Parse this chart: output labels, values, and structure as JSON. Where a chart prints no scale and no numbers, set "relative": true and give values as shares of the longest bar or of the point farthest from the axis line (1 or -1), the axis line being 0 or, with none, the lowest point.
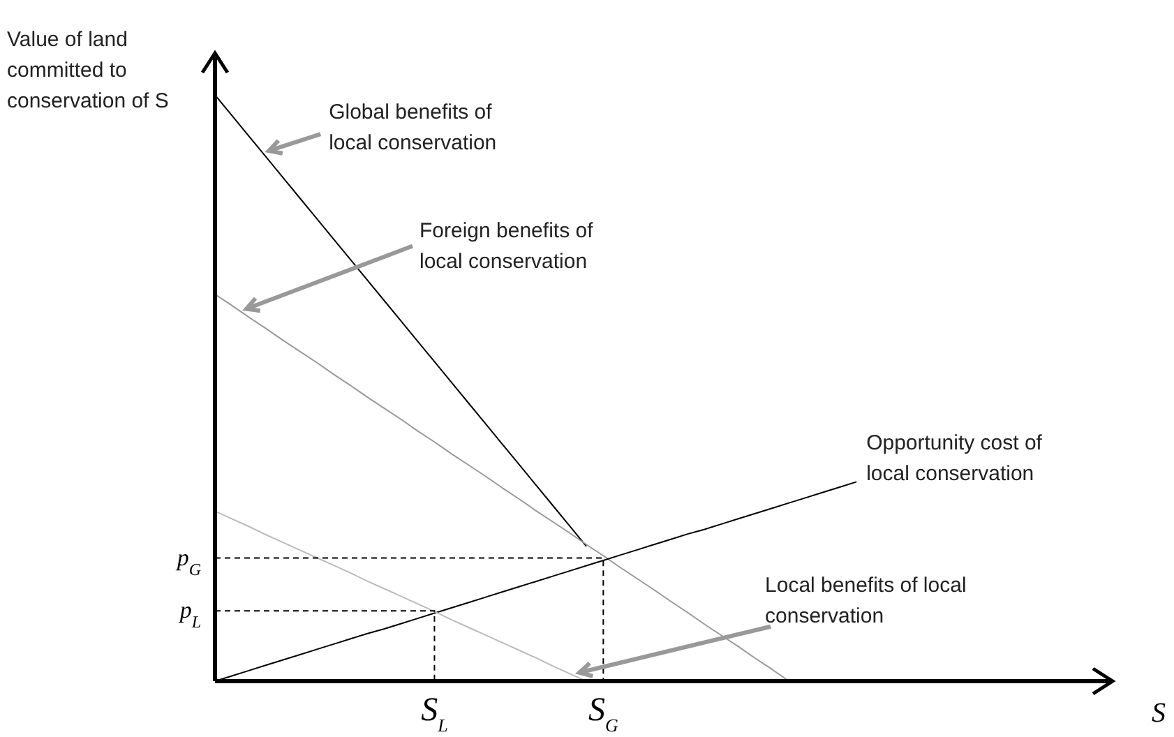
{
  "chart_data": {
    "type": "line",
    "relative": true,
    "ylabel": "Value of land committed to conservation of S",
    "xlabel": "S",
    "categories": [
      null,
      null,
      null,
      null,
      null,
      null,
      null,
      null,
      null,
      null,
      null,
      null,
      null,
      "S$_{L}$",
      null,
      null,
      null,
      null,
      null,
      null,
      null,
      null,
      null,
      "S$_{G}$",
      null,
      null,
      null,
      null,
      null,
      null,
      null,
      null,
      null,
      null,
      null,
      null,
      null,
      null,
      null,
      null,
      null,
      null,
      null,
      null,
      null,
      null,
      null,
      null,
      null,
      null,
      null,
      null,
      null,
      null
    ],
    "grid": false,
    "legend": false,
    "marker": "none",
    "ref_lines": [
      {
        "axis": "y",
        "value": 0.21,
        "label": "p$_{G}$",
        "line_style": "dashed",
        "color": "#000000"
      },
      {
        "axis": "y",
        "value": 0.12,
        "label": "p$_{L}$",
        "line_style": "dashed",
        "color": "#000000"
      }
    ],
    "series": [
      {
        "name": "Global benefits of local conservation",
        "color": "#000000",
        "values": [
          1,
          0.965,
          0.93,
          0.895,
          0.86,
          0.825,
          0.79,
          0.755,
          0.72,
          0.685,
          0.65,
          0.615,
          0.58,
          0.545,
          0.51,
          0.475,
          0.44,
          0.405,
          0.37,
          0.335,
          0.3,
          0.265,
          0.23,
          null,
          null,
          null,
          null,
          null,
          null,
          null,
          null,
          null,
          null,
          null,
          null,
          null,
          null,
          null,
          null,
          null,
          null,
          null,
          null,
          null,
          null,
          null,
          null,
          null,
          null,
          null,
          null,
          null,
          null,
          null
        ]
      },
      {
        "name": "Foreign benefits of local conservation",
        "color": "#999999",
        "values": [
          0.66,
          0.641,
          0.621,
          0.602,
          0.582,
          0.563,
          0.544,
          0.524,
          0.505,
          0.485,
          0.466,
          0.447,
          0.427,
          0.408,
          0.388,
          0.369,
          0.35,
          0.33,
          0.311,
          0.291,
          0.272,
          0.253,
          0.233,
          0.214,
          0.194,
          0.175,
          0.156,
          0.136,
          0.117,
          0.097,
          0.078,
          0.059,
          0.039,
          0.02,
          0,
          null,
          null,
          null,
          null,
          null,
          null,
          null,
          null,
          null,
          null,
          null,
          null,
          null,
          null,
          null,
          null,
          null,
          null,
          null
        ]
      },
      {
        "name": "Opportunity cost of local conservation",
        "color": "#000000",
        "values": [
          0,
          0.009,
          0.018,
          0.027,
          0.036,
          0.045,
          0.054,
          0.063,
          0.072,
          0.081,
          0.089,
          0.098,
          0.107,
          0.116,
          0.125,
          0.134,
          0.143,
          0.152,
          0.161,
          0.17,
          0.179,
          0.188,
          0.197,
          0.206,
          0.215,
          0.224,
          0.233,
          0.242,
          0.251,
          0.259,
          0.268,
          0.277,
          0.286,
          0.295,
          0.304,
          0.313,
          0.322,
          0.331,
          0.34,
          null,
          null,
          null,
          null,
          null,
          null,
          null,
          null,
          null,
          null,
          null,
          null,
          null,
          null,
          null
        ]
      },
      {
        "name": "Local benefits of local conservation",
        "color": "#bbbbbb",
        "values": [
          0.29,
          0.277,
          0.264,
          0.25,
          0.237,
          0.224,
          0.211,
          0.198,
          0.185,
          0.171,
          0.158,
          0.145,
          0.132,
          0.119,
          0.105,
          0.092,
          0.079,
          0.066,
          0.053,
          0.04,
          0.026,
          0.013,
          0,
          null,
          null,
          null,
          null,
          null,
          null,
          null,
          null,
          null,
          null,
          null,
          null,
          null,
          null,
          null,
          null,
          null,
          null,
          null,
          null,
          null,
          null,
          null,
          null,
          null,
          null,
          null,
          null,
          null,
          null,
          null
        ]
      }
    ]
  }
}
